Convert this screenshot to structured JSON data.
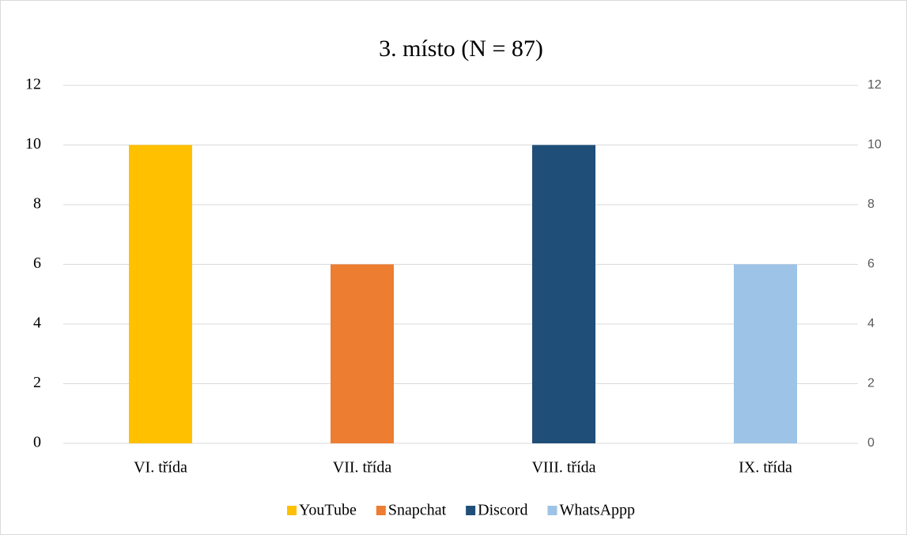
{
  "chart_data": {
    "type": "bar",
    "stacked": true,
    "title": "3. místo (N = 87)",
    "categories": [
      "VI. třída",
      "VII. třída",
      "VIII. třída",
      "IX. třída"
    ],
    "series": [
      {
        "name": "YouTube",
        "color": "#ffc000",
        "values": [
          10,
          null,
          null,
          null
        ]
      },
      {
        "name": "Snapchat",
        "color": "#ed7d31",
        "values": [
          null,
          6,
          null,
          null
        ]
      },
      {
        "name": "Discord",
        "color": "#1f4e79",
        "values": [
          null,
          null,
          10,
          null
        ]
      },
      {
        "name": "WhatsAppp",
        "color": "#9dc3e6",
        "values": [
          null,
          null,
          null,
          6
        ]
      }
    ],
    "ylim": [
      0,
      12
    ],
    "yticks": [
      0,
      2,
      4,
      6,
      8,
      10,
      12
    ],
    "y2lim": [
      0,
      12
    ],
    "y2ticks": [
      0,
      2,
      4,
      6,
      8,
      10,
      12
    ],
    "grid": true,
    "legend": "bottom"
  }
}
